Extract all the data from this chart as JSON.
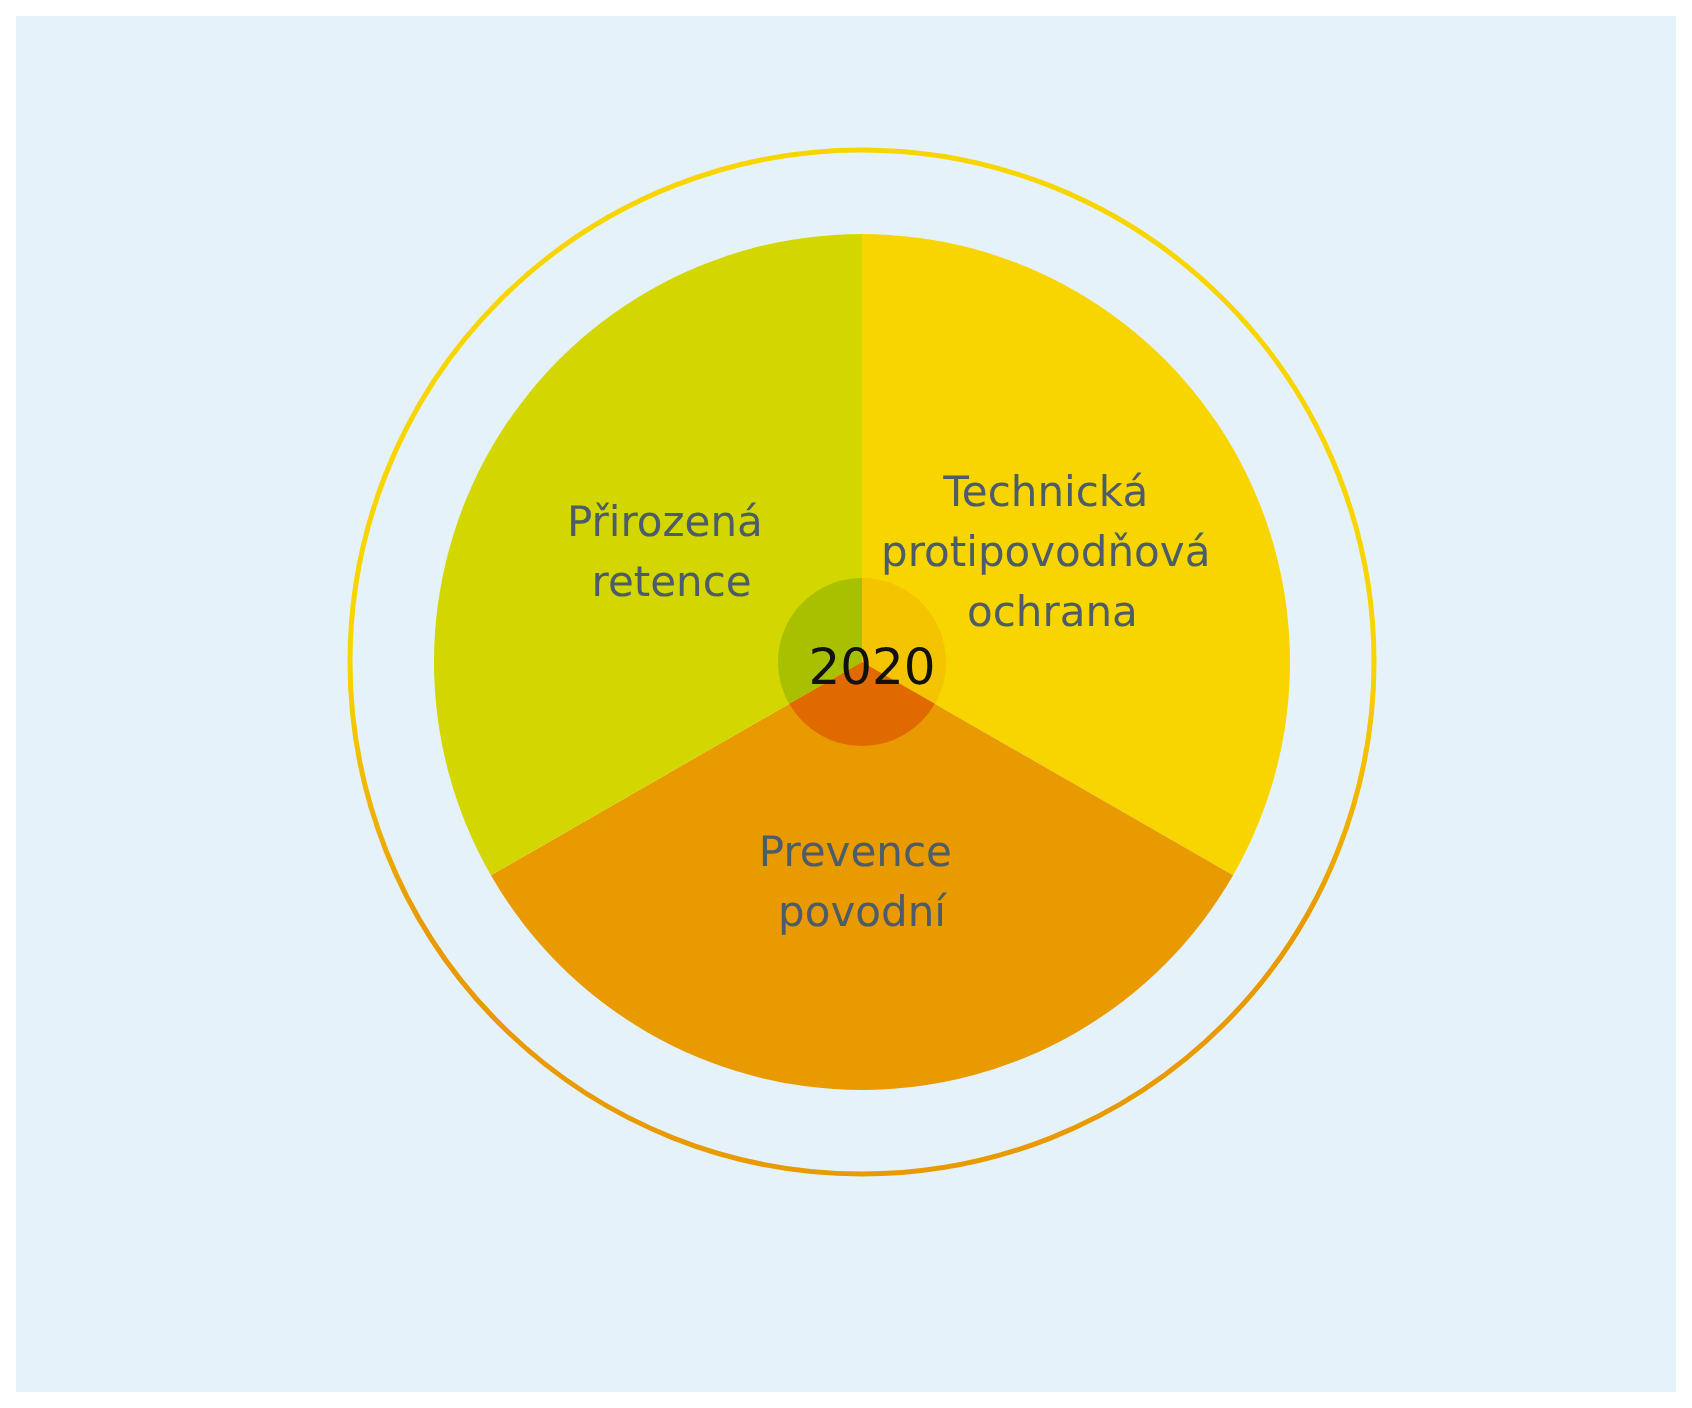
{
  "chart_data": {
    "type": "pie",
    "title": "2020",
    "categories": [
      "Technická protipovodňová ochrana",
      "Prevence povodní",
      "Přirozená retence"
    ],
    "series": [
      {
        "values": [
          33.3,
          33.4,
          33.3
        ],
        "colors": [
          "#f9d500",
          "#e89a00",
          "#d4d600"
        ]
      },
      {
        "values": [
          33.3,
          33.4,
          33.3
        ],
        "colors": [
          "#f5c400",
          "#e06a00",
          "#a8c000"
        ]
      }
    ],
    "legend": false
  }
}
